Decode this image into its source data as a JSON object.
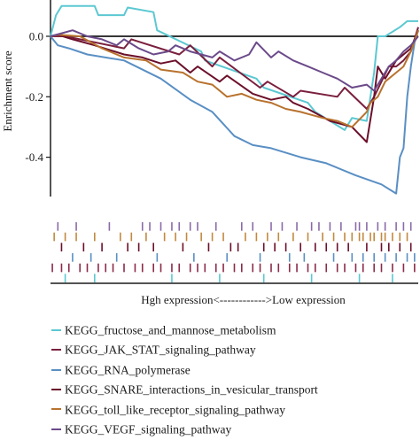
{
  "chart_data": {
    "type": "line",
    "title": "",
    "xlabel": "Hgh expression<------------>Low expression",
    "ylabel": "Enrichment score",
    "x_domain": [
      0,
      100
    ],
    "ylim": [
      -0.53,
      0.12
    ],
    "yticks": [
      {
        "value": 0.0,
        "label": "0.0"
      },
      {
        "value": -0.2,
        "label": "-0.2"
      },
      {
        "value": -0.4,
        "label": "-0.4"
      }
    ],
    "zero_line": true,
    "legend_position": "bottom",
    "series": [
      {
        "name": "KEGG_fructose_and_mannose_metabolism",
        "color": "#5bc8d2",
        "x": [
          0,
          1.5,
          3,
          12,
          13,
          20,
          21,
          28,
          29,
          41,
          42,
          56,
          58,
          70,
          72,
          80,
          82,
          86,
          88,
          89,
          91,
          95,
          97,
          100
        ],
        "y": [
          0.0,
          0.07,
          0.1,
          0.1,
          0.07,
          0.07,
          0.095,
          0.08,
          0.02,
          -0.05,
          -0.08,
          -0.14,
          -0.17,
          -0.22,
          -0.25,
          -0.31,
          -0.27,
          -0.28,
          -0.12,
          0.0,
          0.0,
          0.03,
          0.05,
          0.05
        ]
      },
      {
        "name": "KEGG_JAK_STAT_signaling_pathway",
        "color": "#7a1f3d",
        "x": [
          0,
          4,
          8,
          20,
          22,
          35,
          38,
          44,
          46,
          57,
          59,
          66,
          68,
          78,
          80,
          86,
          88,
          90,
          92,
          94,
          96,
          98,
          100
        ],
        "y": [
          0.0,
          0.0,
          -0.01,
          -0.04,
          -0.01,
          -0.06,
          -0.03,
          -0.1,
          -0.07,
          -0.17,
          -0.15,
          -0.2,
          -0.18,
          -0.2,
          -0.17,
          -0.24,
          -0.2,
          -0.15,
          -0.1,
          -0.1,
          -0.08,
          -0.05,
          0.03
        ]
      },
      {
        "name": "KEGG_RNA_polymerase",
        "color": "#5a8fc4",
        "x": [
          0,
          2,
          5,
          10,
          20,
          30,
          38,
          44,
          50,
          55,
          60,
          68,
          75,
          83,
          90,
          94,
          95,
          96,
          97,
          98,
          99,
          100
        ],
        "y": [
          0.0,
          -0.03,
          -0.04,
          -0.06,
          -0.08,
          -0.14,
          -0.21,
          -0.25,
          -0.33,
          -0.36,
          -0.37,
          -0.4,
          -0.42,
          -0.46,
          -0.49,
          -0.52,
          -0.4,
          -0.37,
          -0.2,
          -0.1,
          -0.02,
          0.02
        ]
      },
      {
        "name": "KEGG_SNARE_interactions_in_vesicular_transport",
        "color": "#6b0f2a",
        "x": [
          0,
          2,
          6,
          12,
          20,
          25,
          30,
          34,
          38,
          40,
          46,
          48,
          55,
          60,
          64,
          66,
          70,
          76,
          82,
          86,
          88,
          89,
          91,
          94,
          96,
          98,
          100
        ],
        "y": [
          0.0,
          0.005,
          -0.01,
          -0.03,
          -0.06,
          -0.07,
          -0.09,
          -0.08,
          -0.12,
          -0.1,
          -0.15,
          -0.13,
          -0.19,
          -0.21,
          -0.2,
          -0.22,
          -0.24,
          -0.28,
          -0.3,
          -0.35,
          -0.2,
          -0.1,
          -0.14,
          -0.08,
          -0.06,
          -0.04,
          0.02
        ]
      },
      {
        "name": "KEGG_toll_like_receptor_signaling_pathway",
        "color": "#b8722e",
        "x": [
          0,
          2,
          8,
          14,
          20,
          26,
          30,
          36,
          40,
          44,
          48,
          52,
          56,
          60,
          64,
          68,
          74,
          78,
          82,
          86,
          87,
          89,
          91,
          94,
          96,
          98,
          100
        ],
        "y": [
          0.0,
          0.005,
          0.0,
          -0.04,
          -0.07,
          -0.08,
          -0.11,
          -0.12,
          -0.15,
          -0.16,
          -0.2,
          -0.19,
          -0.21,
          -0.22,
          -0.24,
          -0.25,
          -0.27,
          -0.28,
          -0.3,
          -0.25,
          -0.22,
          -0.2,
          -0.15,
          -0.12,
          -0.1,
          -0.05,
          0.02
        ]
      },
      {
        "name": "KEGG_VEGF_signaling_pathway",
        "color": "#6b4a8a",
        "x": [
          0,
          3,
          6,
          10,
          14,
          18,
          20,
          24,
          28,
          32,
          34,
          38,
          44,
          46,
          50,
          54,
          56,
          60,
          62,
          66,
          70,
          74,
          78,
          82,
          86,
          88,
          92,
          94,
          96,
          98,
          100
        ],
        "y": [
          0.0,
          0.01,
          0.02,
          0.0,
          -0.01,
          -0.03,
          -0.01,
          -0.04,
          -0.06,
          -0.05,
          -0.03,
          -0.05,
          -0.07,
          -0.05,
          -0.08,
          -0.06,
          -0.02,
          -0.07,
          -0.05,
          -0.08,
          -0.1,
          -0.12,
          -0.14,
          -0.17,
          -0.16,
          -0.18,
          -0.1,
          -0.08,
          -0.05,
          -0.03,
          0.0
        ]
      }
    ],
    "hit_rows": [
      {
        "series": "KEGG_VEGF_signaling_pathway",
        "color": "#8a6aa8",
        "x": [
          2,
          7,
          16,
          25,
          27,
          30,
          33,
          35,
          38,
          40,
          45,
          52,
          55,
          60,
          63,
          67,
          71,
          73,
          76,
          79,
          83,
          84,
          86,
          89,
          91,
          94,
          96,
          98
        ]
      },
      {
        "series": "KEGG_toll_like_receptor_signaling_pathway",
        "color": "#c2893e",
        "x": [
          1,
          4,
          7,
          12,
          19,
          22,
          26,
          31,
          34,
          37,
          41,
          44,
          47,
          53,
          56,
          59,
          62,
          66,
          70,
          74,
          77,
          80,
          82,
          84,
          85,
          87,
          88,
          90,
          91,
          93,
          95,
          97
        ]
      },
      {
        "series": "KEGG_SNARE_interactions_in_vesicular_transport",
        "color": "#6b0f2a",
        "x": [
          3,
          9,
          14,
          21,
          24,
          28,
          36,
          43,
          49,
          51,
          58,
          61,
          64,
          68,
          72,
          75,
          78,
          81,
          86,
          90,
          92,
          95,
          98
        ]
      },
      {
        "series": "KEGG_RNA_polymerase",
        "color": "#5a8fc4",
        "x": [
          6,
          11,
          18,
          29,
          39,
          48,
          57,
          65,
          69,
          77,
          82,
          85,
          88,
          91,
          94,
          97,
          99
        ]
      },
      {
        "series": "KEGG_JAK_STAT_signaling_pathway",
        "color": "#8c2a48",
        "x": [
          0.5,
          3,
          5,
          8,
          10,
          13,
          15,
          17,
          20,
          23,
          25,
          28,
          30,
          33,
          35,
          38,
          40,
          42,
          45,
          47,
          50,
          52,
          55,
          57,
          60,
          62,
          65,
          67,
          70,
          72,
          75,
          78,
          80,
          83,
          85,
          88,
          90,
          93,
          96,
          99
        ]
      },
      {
        "series": "KEGG_fructose_and_mannose_metabolism",
        "color": "#5bc8d2",
        "x": [
          4,
          12,
          33,
          46,
          58,
          71,
          84,
          93
        ]
      }
    ]
  }
}
